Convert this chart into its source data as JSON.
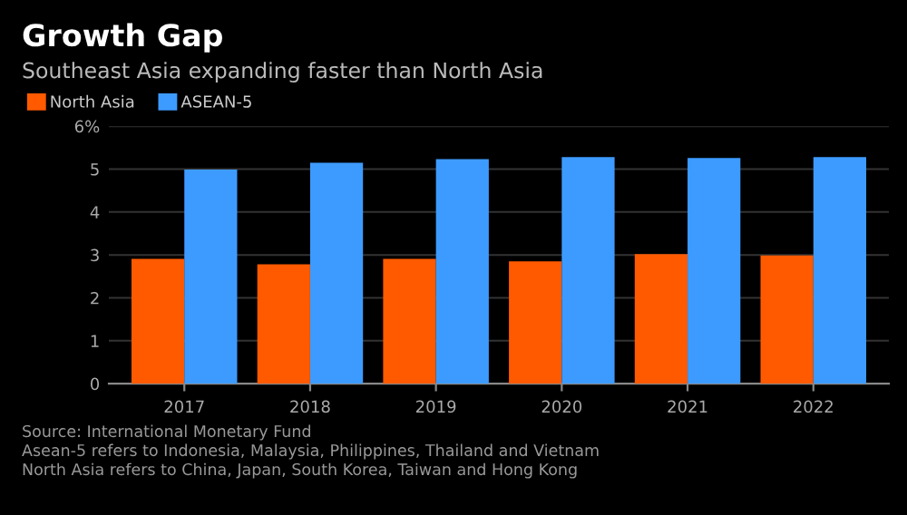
{
  "chart_data": {
    "type": "bar",
    "title": "Growth Gap",
    "subtitle": "Southeast Asia expanding faster than North Asia",
    "categories": [
      "2017",
      "2018",
      "2019",
      "2020",
      "2021",
      "2022"
    ],
    "series": [
      {
        "name": "North Asia",
        "color": "#ff5a00",
        "values": [
          2.91,
          2.78,
          2.91,
          2.85,
          3.02,
          2.99
        ]
      },
      {
        "name": "ASEAN-5",
        "color": "#3d9bff",
        "values": [
          4.99,
          5.15,
          5.23,
          5.28,
          5.26,
          5.28
        ]
      }
    ],
    "ylim": [
      0,
      6
    ],
    "yticks": [
      0,
      1,
      2,
      3,
      4,
      5,
      {
        "value": 6,
        "label": "6%"
      }
    ],
    "grid": "y",
    "legend": "top left",
    "annotations": [
      "Source: International Monetary Fund",
      "Asean-5 refers to Indonesia, Malaysia, Philippines, Thailand and Vietnam",
      "North Asia refers to China, Japan, South Korea, Taiwan and Hong Kong"
    ]
  }
}
